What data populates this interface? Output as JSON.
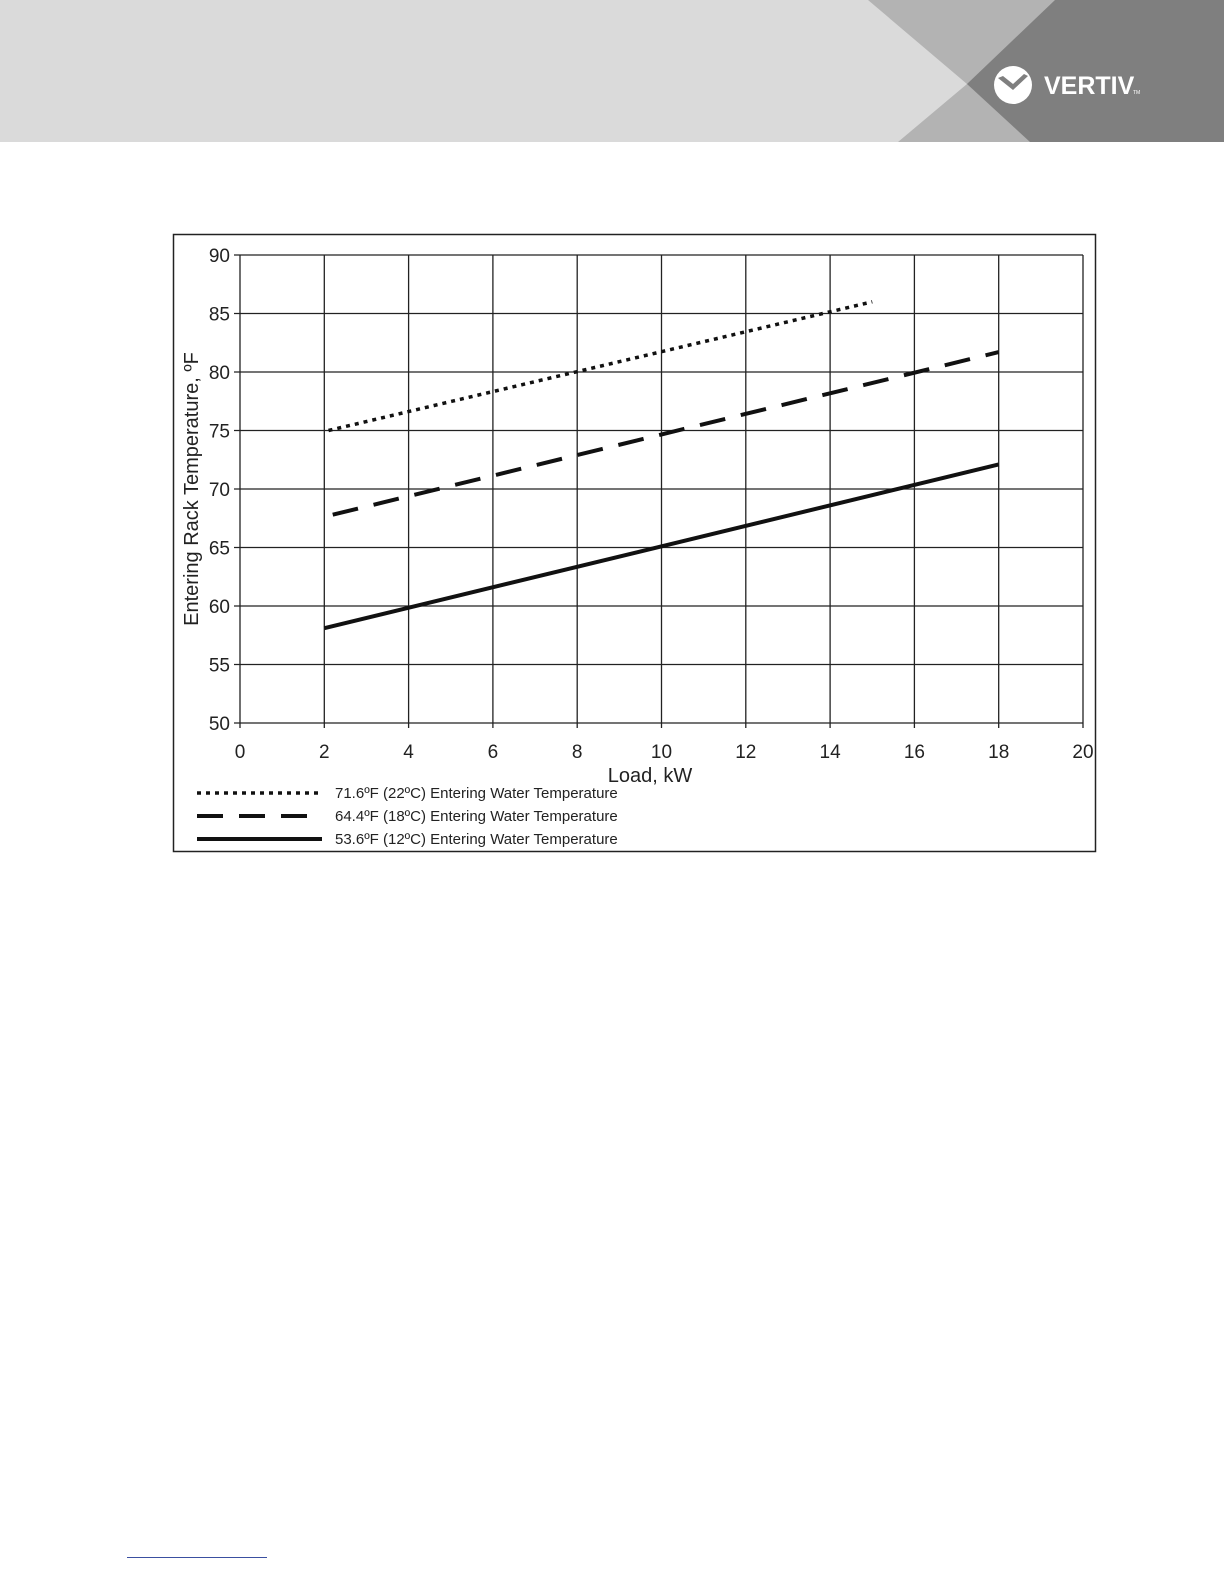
{
  "header": {
    "brand": "VERTIV",
    "trademark": "TM",
    "colors": {
      "band": "#dadada",
      "mid": "#b3b3b3",
      "dark": "#7f7f7f"
    }
  },
  "chart_data": {
    "type": "line",
    "xlabel": "Load, kW",
    "ylabel": "Entering Rack Temperature, ºF",
    "xlim": [
      0,
      20
    ],
    "ylim": [
      50,
      90
    ],
    "xticks": [
      0,
      2,
      4,
      6,
      8,
      10,
      12,
      14,
      16,
      18,
      20
    ],
    "yticks": [
      50,
      55,
      60,
      65,
      70,
      75,
      80,
      85,
      90
    ],
    "grid": true,
    "legend_placement": "bottom",
    "series": [
      {
        "name": "71.6ºF (22ºC) Entering Water Temperature",
        "style": "dotted",
        "x": [
          2.1,
          15
        ],
        "y": [
          75,
          86
        ]
      },
      {
        "name": "64.4ºF (18ºC) Entering Water Temperature",
        "style": "dashed",
        "x": [
          2.2,
          18
        ],
        "y": [
          67.8,
          81.7
        ]
      },
      {
        "name": "53.6ºF (12ºC) Entering Water Temperature",
        "style": "solid",
        "x": [
          2,
          18
        ],
        "y": [
          58.1,
          72.1
        ]
      }
    ]
  }
}
